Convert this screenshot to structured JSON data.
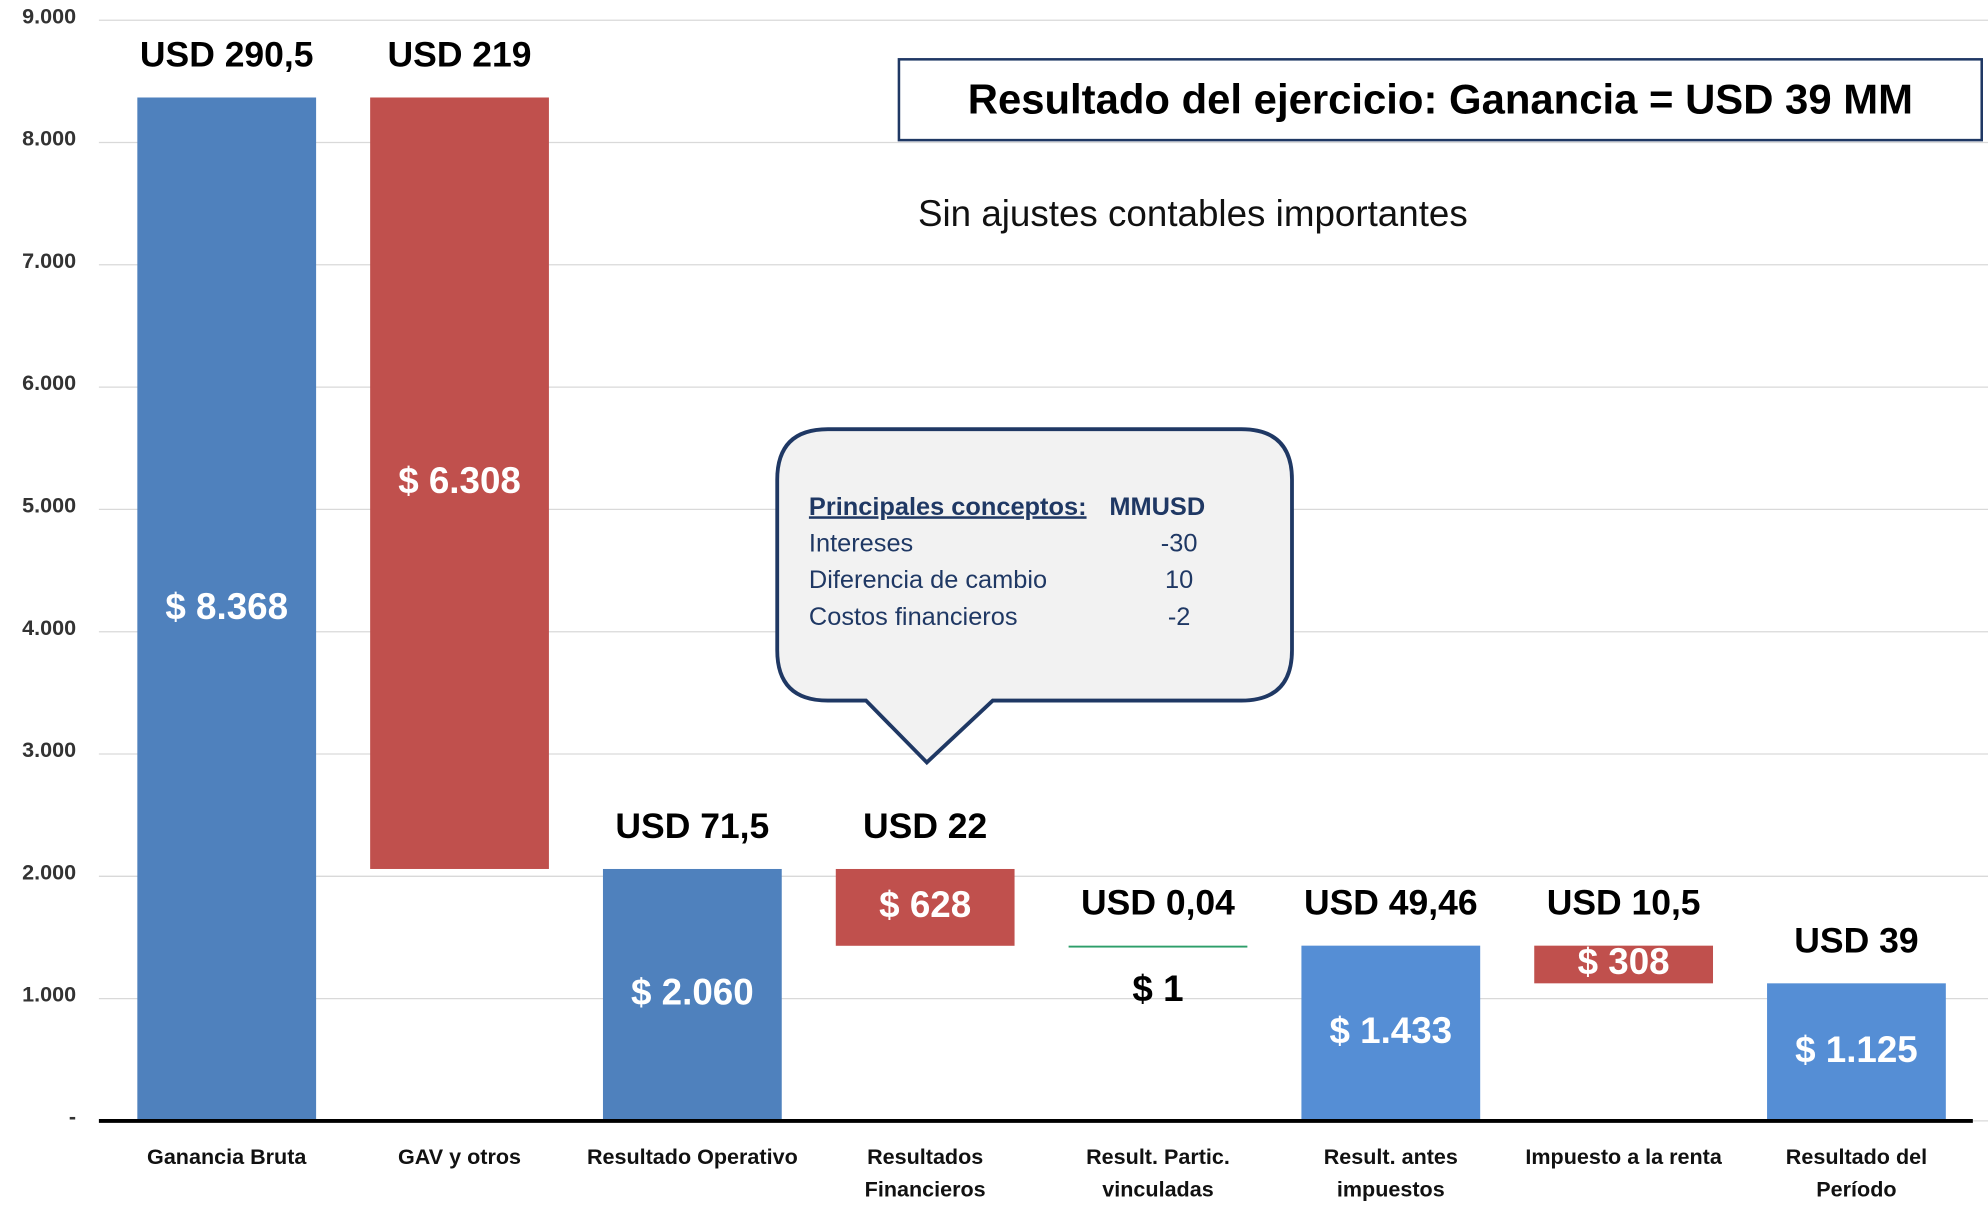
{
  "chart_data": {
    "type": "waterfall",
    "title": "Resultado del ejercicio: Ganancia = USD 39 MM",
    "subtitle": "Sin ajustes contables importantes",
    "categories": [
      "Ganancia Bruta",
      "GAV y otros",
      "Resultado Operativo",
      "Resultados Financieros",
      "Result. Partic. vinculadas",
      "Result. antes impuestos",
      "Impuesto a la renta",
      "Resultado del Período"
    ],
    "values": [
      8368,
      -6308,
      2060,
      -628,
      1,
      1433,
      -308,
      1125
    ],
    "value_labels": [
      "$ 8.368",
      "$ 6.308",
      "$ 2.060",
      "$ 628",
      "$ 1",
      "$ 1.433",
      "$ 308",
      "$ 1.125"
    ],
    "top_labels": [
      "USD 290,5",
      "USD 219",
      "USD 71,5",
      "USD 22",
      "USD 0,04",
      "USD 49,46",
      "USD 10,5",
      "USD 39"
    ],
    "colors": [
      "#4f81bd",
      "#c0504d",
      "#4f81bd",
      "#c0504d",
      "#2e9e6a",
      "#558ed5",
      "#c0504d",
      "#558ed5"
    ],
    "ylim": [
      0,
      9000
    ],
    "yticks": [
      {
        "value": 0,
        "label": "-"
      },
      {
        "value": 1000,
        "label": "1.000"
      },
      {
        "value": 2000,
        "label": "2.000"
      },
      {
        "value": 3000,
        "label": "3.000"
      },
      {
        "value": 4000,
        "label": "4.000"
      },
      {
        "value": 5000,
        "label": "5.000"
      },
      {
        "value": 6000,
        "label": "6.000"
      },
      {
        "value": 7000,
        "label": "7.000"
      },
      {
        "value": 8000,
        "label": "8.000"
      },
      {
        "value": 9000,
        "label": "9.000"
      }
    ],
    "grid": true,
    "callout": {
      "header": [
        "Principales conceptos:",
        "MMUSD"
      ],
      "rows": [
        [
          "Intereses",
          -30
        ],
        [
          "Diferencia de cambio",
          10
        ],
        [
          "Costos financieros",
          -2
        ]
      ]
    }
  }
}
